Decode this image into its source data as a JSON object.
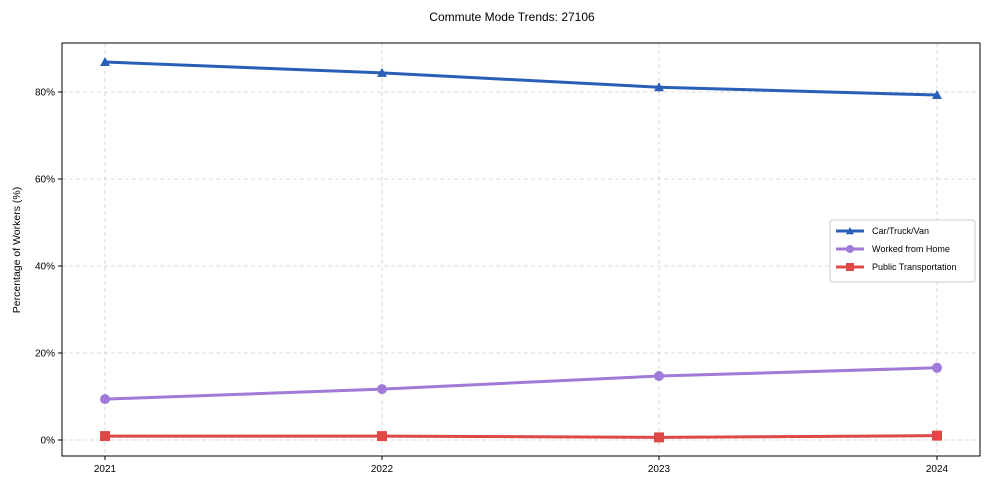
{
  "chart_data": {
    "type": "line",
    "title": "Commute Mode Trends: 27106",
    "xlabel": "",
    "ylabel": "Percentage of Workers (%)",
    "categories": [
      "2021",
      "2022",
      "2023",
      "2024"
    ],
    "yticks": [
      0,
      20,
      40,
      60,
      80
    ],
    "ytick_labels": [
      "0%",
      "20%",
      "40%",
      "60%",
      "80%"
    ],
    "ylim": [
      -3.6,
      91.3
    ],
    "grid": true,
    "legend_position": "center right",
    "series": [
      {
        "name": "Car/Truck/Van",
        "color": "#2a5fb8",
        "marker": "triangle",
        "values": [
          86.9,
          84.4,
          81.1,
          79.3
        ]
      },
      {
        "name": "Worked from Home",
        "color": "#a07ad8",
        "marker": "circle",
        "values": [
          9.4,
          11.7,
          14.7,
          16.6
        ]
      },
      {
        "name": "Public Transportation",
        "color": "#e04848",
        "marker": "square",
        "values": [
          0.9,
          0.9,
          0.6,
          1.0
        ]
      }
    ]
  }
}
